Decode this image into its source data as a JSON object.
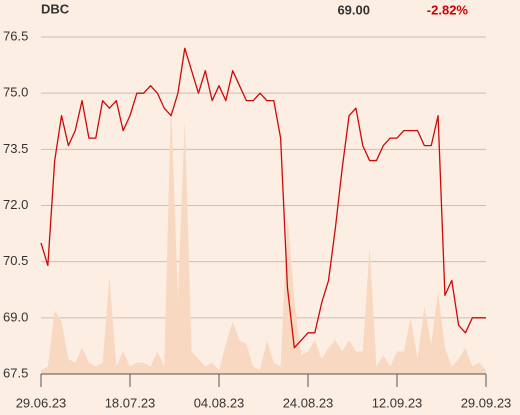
{
  "chart_data": {
    "type": "line",
    "title": "DBC",
    "last_price": "69.00",
    "change": "-2.82%",
    "change_color": "#cc0000",
    "categories": [
      "29.06.23",
      null,
      null,
      null,
      null,
      null,
      null,
      null,
      null,
      null,
      null,
      null,
      null,
      "18.07.23",
      null,
      null,
      null,
      null,
      null,
      null,
      null,
      null,
      null,
      null,
      null,
      null,
      "04.08.23",
      null,
      null,
      null,
      null,
      null,
      null,
      null,
      null,
      null,
      null,
      null,
      null,
      "24.08.23",
      null,
      null,
      null,
      null,
      null,
      null,
      null,
      null,
      null,
      null,
      null,
      null,
      "12.09.23",
      null,
      null,
      null,
      null,
      null,
      null,
      null,
      null,
      null,
      null,
      null,
      null,
      "29.09.23"
    ],
    "series": [
      {
        "kind": "area",
        "color": "#f8d8c1",
        "values": [
          67.6,
          67.7,
          69.2,
          68.9,
          67.9,
          67.8,
          68.2,
          67.8,
          67.7,
          67.8,
          70.1,
          67.7,
          68.1,
          67.7,
          67.8,
          67.8,
          67.7,
          68.1,
          67.7,
          74.8,
          69.5,
          74.3,
          68.1,
          67.9,
          67.7,
          67.8,
          67.6,
          68.3,
          68.9,
          68.4,
          68.3,
          67.7,
          67.6,
          68.4,
          67.8,
          67.7,
          71.7,
          69.5,
          68.0,
          68.1,
          68.4,
          67.9,
          68.2,
          68.4,
          68.1,
          68.4,
          68.1,
          68.1,
          70.9,
          67.7,
          68.0,
          67.7,
          68.1,
          68.1,
          69.0,
          67.9,
          69.3,
          68.3,
          69.7,
          68.2,
          67.7,
          67.9,
          68.2,
          67.7,
          67.8,
          67.6
        ]
      },
      {
        "kind": "line",
        "color": "#cc0a0a",
        "values": [
          71.0,
          70.4,
          73.2,
          74.4,
          73.6,
          74.0,
          74.8,
          73.8,
          73.8,
          74.8,
          74.6,
          74.8,
          74.0,
          74.4,
          75.0,
          75.0,
          75.2,
          75.0,
          74.6,
          74.4,
          75.0,
          76.2,
          75.6,
          75.0,
          75.6,
          74.8,
          75.2,
          74.8,
          75.6,
          75.2,
          74.8,
          74.8,
          75.0,
          74.8,
          74.8,
          73.8,
          69.8,
          68.2,
          68.4,
          68.6,
          68.6,
          69.4,
          70.0,
          71.4,
          73.0,
          74.4,
          74.6,
          73.6,
          73.2,
          73.2,
          73.6,
          73.8,
          73.8,
          74.0,
          74.0,
          74.0,
          73.6,
          73.6,
          74.4,
          69.6,
          70.0,
          68.8,
          68.6,
          69.0,
          69.0,
          69.0
        ]
      }
    ],
    "ylim": [
      67.5,
      76.5
    ],
    "yticks": [
      67.5,
      {
        "value": 69,
        "label": "69.0"
      },
      70.5,
      {
        "value": 72,
        "label": "72.0"
      },
      73.5,
      {
        "value": 75,
        "label": "75.0"
      },
      76.5
    ],
    "grid": true
  }
}
